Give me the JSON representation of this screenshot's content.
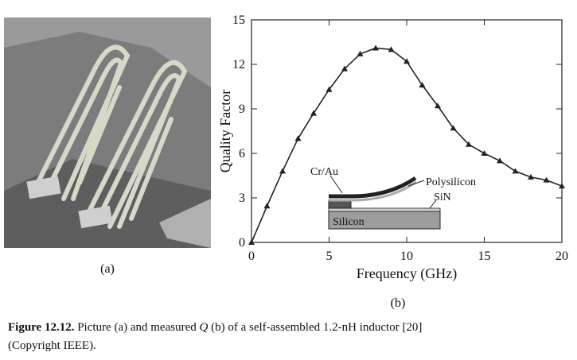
{
  "panel_a_label": "(a)",
  "chart_data": {
    "type": "line",
    "panel_label": "(b)",
    "x_label": "Frequency (GHz)",
    "y_label": "Quality Factor",
    "x": [
      0,
      1,
      2,
      3,
      4,
      5,
      6,
      7,
      8,
      9,
      10,
      11,
      12,
      13,
      14,
      15,
      16,
      17,
      18,
      19,
      20
    ],
    "values": [
      0,
      2.45,
      4.8,
      7.0,
      8.7,
      10.3,
      11.7,
      12.7,
      13.1,
      13.0,
      12.2,
      10.6,
      9.2,
      7.7,
      6.6,
      6.0,
      5.5,
      4.8,
      4.4,
      4.2,
      3.8
    ],
    "color": "#222222",
    "xlim": [
      0,
      20
    ],
    "ylim": [
      0,
      15
    ],
    "xticks": [
      0,
      5,
      10,
      15,
      20
    ],
    "yticks": [
      0,
      3,
      6,
      9,
      12,
      15
    ],
    "inset_labels": {
      "metal": "Cr/Au",
      "poly": "Polysilicon",
      "nitride": "SiN",
      "substrate": "Silicon"
    }
  },
  "caption": {
    "label": "Figure 12.12.",
    "text1": "Picture (a) and measured ",
    "symbol": "Q",
    "text2": " (b) of a self-assembled 1.2-nH inductor [20]",
    "text3": "(Copyright IEEE)."
  }
}
